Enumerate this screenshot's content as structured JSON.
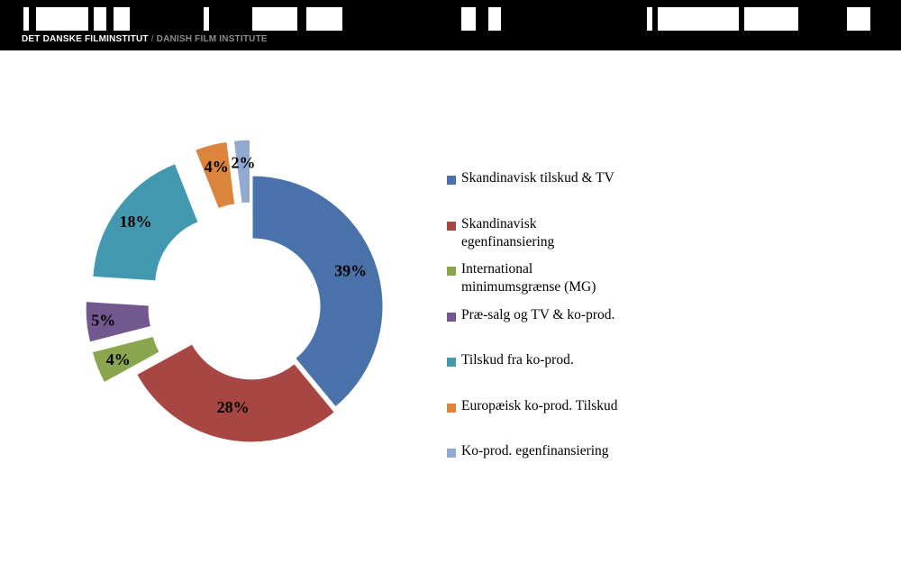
{
  "header": {
    "org_name_da": "DET DANSKE FILMINSTITUT",
    "separator": "/",
    "org_name_en": "DANISH FILM INSTITUTE"
  },
  "colors": {
    "header_bg": "#000000",
    "text": "#000000"
  },
  "chart_data": {
    "type": "pie",
    "variant": "doughnut-exploded",
    "title": "",
    "categories": [
      "Skandinavisk tilskud & TV",
      "Skandinavisk egenfinansiering",
      "International minimumsgrænse (MG)",
      "Præ-salg og TV & ko-prod.",
      "Tilskud fra ko-prod.",
      "Europæisk ko-prod. Tilskud",
      "Ko-prod. egenfinansiering"
    ],
    "values": [
      39,
      28,
      4,
      5,
      18,
      4,
      2
    ],
    "data_labels": [
      "39%",
      "28%",
      "4%",
      "5%",
      "18%",
      "4%",
      "2%"
    ],
    "colors": [
      "#4a72aa",
      "#a84643",
      "#89a54e",
      "#71588f",
      "#4198af",
      "#db843d",
      "#93a9cf"
    ],
    "legend": {
      "position": "right",
      "entries": [
        {
          "lines": [
            "Skandinavisk tilskud & TV"
          ]
        },
        {
          "lines": [
            "Skandinavisk",
            "egenfinansiering"
          ]
        },
        {
          "lines": [
            "International",
            "minimumsgrænse (MG)"
          ]
        },
        {
          "lines": [
            "Præ-salg og TV & ko-prod."
          ]
        },
        {
          "lines": [
            "Tilskud fra ko-prod."
          ]
        },
        {
          "lines": [
            "Europæisk ko-prod. Tilskud"
          ]
        },
        {
          "lines": [
            "Ko-prod. egenfinansiering"
          ]
        }
      ]
    }
  }
}
